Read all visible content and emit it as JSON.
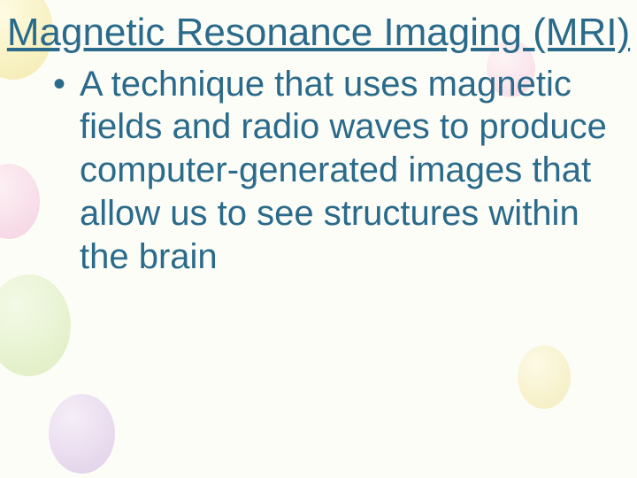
{
  "title": {
    "text": "Magnetic Resonance Imaging (MRI)",
    "color": "#2a6a8a",
    "fontsize": 44,
    "underline": true
  },
  "bullet": {
    "text": "A technique that uses magnetic fields and radio waves to produce computer-generated images that allow us to see structures within the brain",
    "color": "#2a6a8a",
    "fontsize": 40
  },
  "background": {
    "base_color": "#fdfdf8",
    "decorations": [
      {
        "shape": "balloon",
        "color_stops": [
          "#fff9d0",
          "#f5e896",
          "#e8d968"
        ],
        "position": "top-left",
        "opacity": 0.5
      },
      {
        "shape": "balloon",
        "color_stops": [
          "#fde4f0",
          "#f5c5de",
          "#e8a8ca"
        ],
        "position": "mid-left",
        "opacity": 0.5
      },
      {
        "shape": "balloon",
        "color_stops": [
          "#e8f5d0",
          "#d0e8a8",
          "#b8d878"
        ],
        "position": "lower-left",
        "opacity": 0.45
      },
      {
        "shape": "balloon",
        "color_stops": [
          "#ede0f5",
          "#d8c0e8",
          "#c0a0d5"
        ],
        "position": "bottom-left",
        "opacity": 0.5
      },
      {
        "shape": "balloon",
        "color_stops": [
          "#fde8f0",
          "#f5c5de",
          "#eda8ca"
        ],
        "position": "top-right",
        "opacity": 0.4
      },
      {
        "shape": "balloon",
        "color_stops": [
          "#fcf5d0",
          "#f2e8a0",
          "#e5d878"
        ],
        "position": "bottom-right",
        "opacity": 0.45
      }
    ]
  }
}
